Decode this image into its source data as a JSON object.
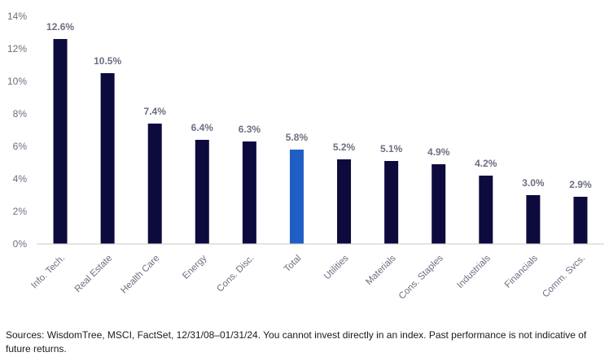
{
  "chart_data": {
    "type": "bar",
    "categories": [
      "Info. Tech.",
      "Real Estate",
      "Health Care",
      "Energy",
      "Cons. Disc.",
      "Total",
      "Utilities",
      "Materials",
      "Cons. Staples",
      "Industrials",
      "Financials",
      "Comm. Svcs."
    ],
    "values": [
      12.6,
      10.5,
      7.4,
      6.4,
      6.3,
      5.8,
      5.2,
      5.1,
      4.9,
      4.2,
      3.0,
      2.9
    ],
    "value_labels": [
      "12.6%",
      "10.5%",
      "7.4%",
      "6.4%",
      "6.3%",
      "5.8%",
      "5.2%",
      "5.1%",
      "4.9%",
      "4.2%",
      "3.0%",
      "2.9%"
    ],
    "highlight_category": "Total",
    "colors": {
      "bar": "#0d0a3e",
      "highlight": "#1f5fc4",
      "axis": "#c8c8c8",
      "label": "#6b6f80"
    },
    "ylim": [
      0,
      14
    ],
    "yticks": [
      0,
      2,
      4,
      6,
      8,
      10,
      12,
      14
    ],
    "ytick_labels": [
      "0%",
      "2%",
      "4%",
      "6%",
      "8%",
      "10%",
      "12%",
      "14%"
    ],
    "grid": false,
    "title": "",
    "xlabel": "",
    "ylabel": ""
  },
  "source_note": "Sources: WisdomTree, MSCI, FactSet, 12/31/08–01/31/24. You cannot invest directly in an index. Past performance is not indicative of future returns."
}
